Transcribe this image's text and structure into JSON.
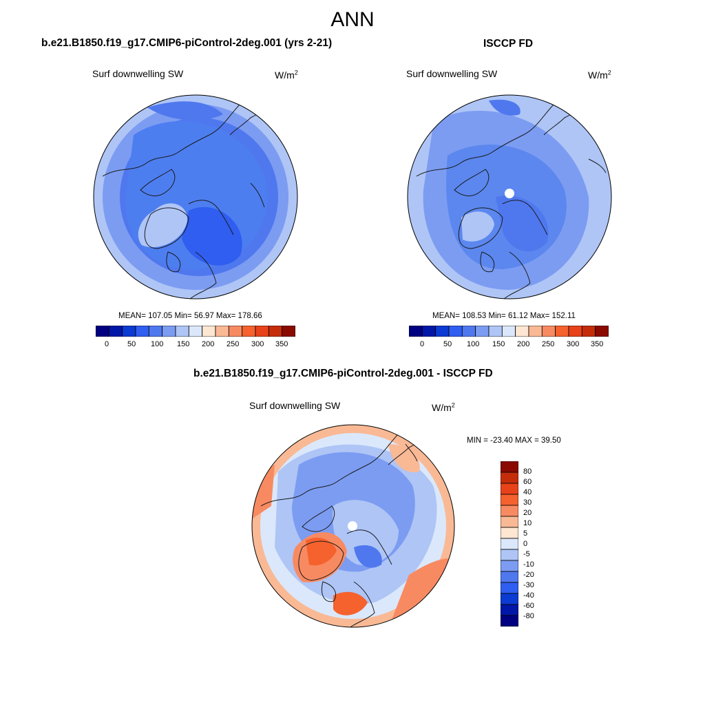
{
  "title": "ANN",
  "colors": {
    "abs_scale": [
      "#000080",
      "#0017a8",
      "#0b3bd2",
      "#2f5ef0",
      "#4f78ef",
      "#7c9cf2",
      "#aec5f6",
      "#dbe8fb",
      "#fde6d2",
      "#f9b995",
      "#f88a62",
      "#f5622e",
      "#e8421a",
      "#c52d0a",
      "#8b0a00"
    ],
    "diff_scale": [
      "#000080",
      "#0017a8",
      "#0b3bd2",
      "#2f5ef0",
      "#4f78ef",
      "#7c9cf2",
      "#aec5f6",
      "#dbe8fb",
      "#fde6d2",
      "#f9b995",
      "#f88a62",
      "#f5622e",
      "#e8421a",
      "#c52d0a",
      "#8b0a00"
    ],
    "map_fill_model": "#4d7ef0",
    "map_fill_obs": "#5b87ee",
    "coastline": "#1a1a1a"
  },
  "panels": {
    "model": {
      "case": "b.e21.B1850.f19_g17.CMIP6-piControl-2deg.001 (yrs 2-21)",
      "variable": "Surf downwelling SW",
      "units_base": "W/m",
      "units_exp": "2",
      "stats": "MEAN= 107.05  Min=  56.97  Max= 178.66",
      "colorbar_ticks": [
        "0",
        "50",
        "100",
        "150",
        "200",
        "250",
        "300",
        "350"
      ]
    },
    "obs": {
      "case": "ISCCP FD",
      "variable": "Surf downwelling SW",
      "units_base": "W/m",
      "units_exp": "2",
      "stats": "MEAN= 108.53  Min=  61.12  Max= 152.11",
      "colorbar_ticks": [
        "0",
        "50",
        "100",
        "150",
        "200",
        "250",
        "300",
        "350"
      ]
    },
    "diff": {
      "case": "b.e21.B1850.f19_g17.CMIP6-piControl-2deg.001 - ISCCP FD",
      "variable": "Surf downwelling SW",
      "units_base": "W/m",
      "units_exp": "2",
      "stats": "MIN = -23.40 MAX =  39.50",
      "colorbar_labels": [
        "80",
        "60",
        "40",
        "30",
        "20",
        "10",
        "5",
        "0",
        "-5",
        "-10",
        "-20",
        "-30",
        "-40",
        "-60",
        "-80"
      ]
    }
  }
}
